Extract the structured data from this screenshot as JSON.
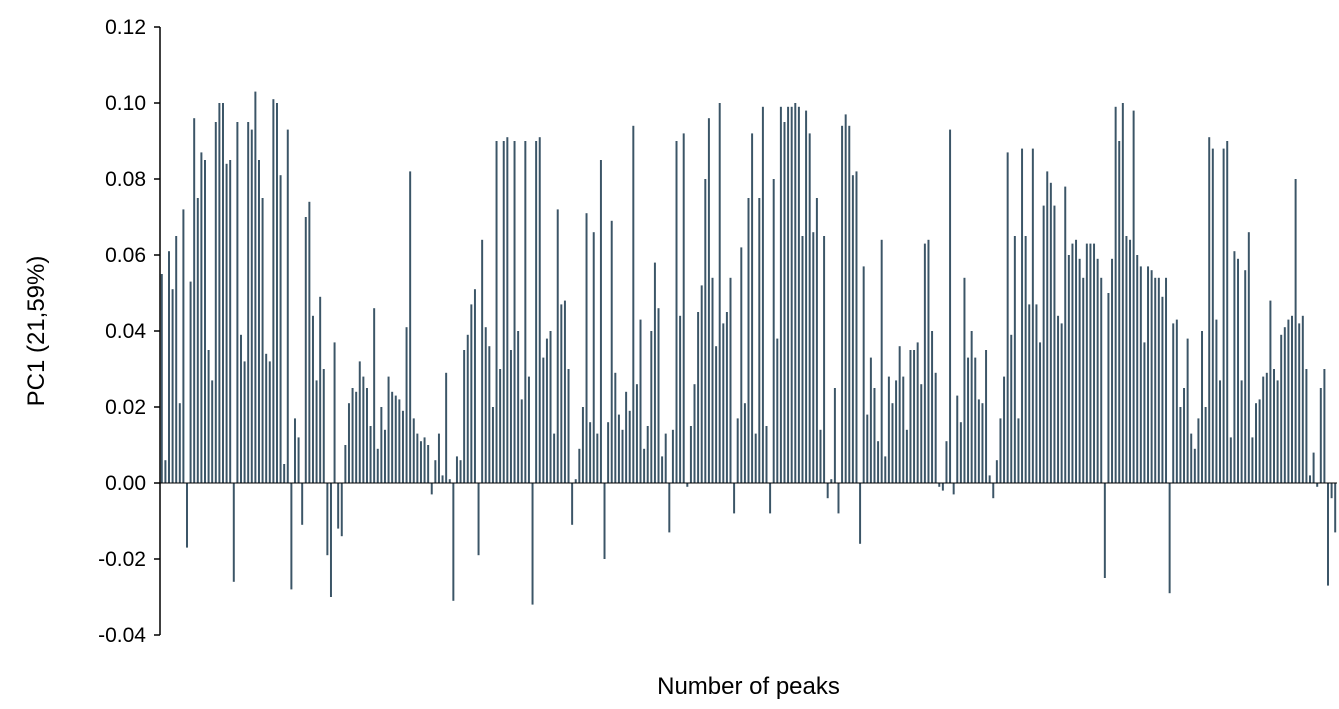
{
  "chart_data": {
    "type": "bar",
    "title": "",
    "xlabel": "Number of peaks",
    "ylabel": "PC1 (21,59%)",
    "ylim": [
      -0.04,
      0.12
    ],
    "yticks": [
      "0.12",
      "0.10",
      "0.08",
      "0.06",
      "0.04",
      "0.02",
      "0.00",
      "-0.02",
      "-0.04"
    ],
    "grid": false,
    "legend": "none",
    "bar_color": "#3b5567",
    "series": [
      {
        "values": [
          0.055,
          0.006,
          0.061,
          0.051,
          0.065,
          0.021,
          0.072,
          -0.017,
          0.053,
          0.096,
          0.075,
          0.087,
          0.085,
          0.035,
          0.027,
          0.095,
          0.1,
          0.1,
          0.084,
          0.085,
          -0.026,
          0.095,
          0.039,
          0.032,
          0.095,
          0.093,
          0.103,
          0.085,
          0.075,
          0.034,
          0.032,
          0.101,
          0.1,
          0.081,
          0.005,
          0.093,
          -0.028,
          0.017,
          0.012,
          -0.011,
          0.07,
          0.074,
          0.044,
          0.027,
          0.049,
          0.03,
          -0.019,
          -0.03,
          0.037,
          -0.012,
          -0.014,
          0.01,
          0.021,
          0.025,
          0.024,
          0.032,
          0.028,
          0.025,
          0.015,
          0.046,
          0.009,
          0.02,
          0.014,
          0.028,
          0.024,
          0.023,
          0.022,
          0.019,
          0.041,
          0.082,
          0.017,
          0.013,
          0.011,
          0.012,
          0.01,
          -0.003,
          0.006,
          0.013,
          0.002,
          0.029,
          0.001,
          -0.031,
          0.007,
          0.006,
          0.035,
          0.039,
          0.047,
          0.051,
          -0.019,
          0.064,
          0.041,
          0.036,
          0.02,
          0.09,
          0.03,
          0.09,
          0.091,
          0.035,
          0.09,
          0.04,
          0.022,
          0.09,
          0.028,
          -0.032,
          0.09,
          0.091,
          0.033,
          0.038,
          0.04,
          0.013,
          0.072,
          0.047,
          0.048,
          0.03,
          -0.011,
          0.001,
          0.009,
          0.02,
          0.071,
          0.016,
          0.066,
          0.013,
          0.085,
          -0.02,
          0.016,
          0.069,
          0.029,
          0.018,
          0.014,
          0.024,
          0.019,
          0.094,
          0.026,
          0.043,
          0.009,
          0.015,
          0.04,
          0.058,
          0.046,
          0.007,
          0.013,
          -0.013,
          0.014,
          0.09,
          0.044,
          0.092,
          -0.001,
          0.015,
          0.026,
          0.045,
          0.052,
          0.08,
          0.096,
          0.054,
          0.036,
          0.1,
          0.042,
          0.045,
          0.054,
          -0.008,
          0.017,
          0.062,
          0.021,
          0.075,
          0.092,
          0.013,
          0.075,
          0.099,
          0.015,
          -0.008,
          0.08,
          0.038,
          0.099,
          0.095,
          0.099,
          0.099,
          0.1,
          0.099,
          0.065,
          0.098,
          0.092,
          0.066,
          0.075,
          0.014,
          0.065,
          -0.004,
          0.001,
          0.025,
          -0.008,
          0.094,
          0.097,
          0.094,
          0.081,
          0.082,
          -0.016,
          0.057,
          0.018,
          0.033,
          0.025,
          0.011,
          0.064,
          0.007,
          0.028,
          0.021,
          0.027,
          0.036,
          0.028,
          0.014,
          0.035,
          0.035,
          0.037,
          0.026,
          0.063,
          0.064,
          0.04,
          0.029,
          -0.001,
          -0.002,
          0.011,
          0.093,
          -0.003,
          0.023,
          0.016,
          0.054,
          0.033,
          0.04,
          0.033,
          0.022,
          0.021,
          0.035,
          0.002,
          -0.004,
          0.006,
          0.017,
          0.028,
          0.087,
          0.039,
          0.065,
          0.017,
          0.088,
          0.065,
          0.047,
          0.088,
          0.047,
          0.037,
          0.073,
          0.082,
          0.079,
          0.073,
          0.044,
          0.042,
          0.078,
          0.06,
          0.063,
          0.064,
          0.059,
          0.054,
          0.063,
          0.063,
          0.063,
          0.059,
          0.054,
          -0.025,
          0.05,
          0.059,
          0.099,
          0.09,
          0.1,
          0.065,
          0.064,
          0.098,
          0.06,
          0.057,
          0.037,
          0.057,
          0.056,
          0.054,
          0.054,
          0.049,
          0.054,
          -0.029,
          0.042,
          0.043,
          0.02,
          0.025,
          0.038,
          0.013,
          0.009,
          0.017,
          0.04,
          0.02,
          0.091,
          0.088,
          0.043,
          0.027,
          0.088,
          0.09,
          0.012,
          0.061,
          0.059,
          0.027,
          0.056,
          0.066,
          0.012,
          0.021,
          0.022,
          0.028,
          0.029,
          0.048,
          0.03,
          0.027,
          0.039,
          0.041,
          0.043,
          0.044,
          0.08,
          0.042,
          0.044,
          0.03,
          0.002,
          0.008,
          -0.001,
          0.025,
          0.03,
          -0.027,
          -0.004,
          -0.013
        ]
      }
    ]
  }
}
